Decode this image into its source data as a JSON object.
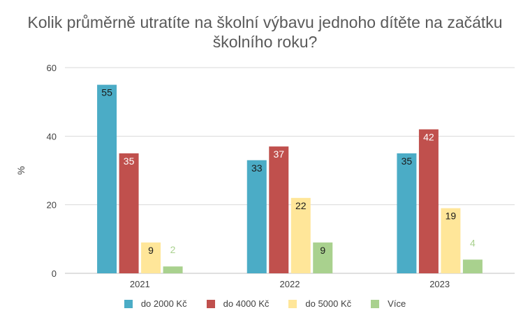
{
  "chart_data": {
    "type": "bar",
    "title_lines": [
      "Kolik průměrně utratíte na školní výbavu jednoho dítěte na začátku",
      "školního roku?"
    ],
    "xlabel": "",
    "ylabel": "%",
    "categories": [
      "2021",
      "2022",
      "2023"
    ],
    "ylim": [
      0,
      60
    ],
    "yticks": [
      0,
      20,
      40,
      60
    ],
    "grid": true,
    "legend_position": "bottom",
    "series": [
      {
        "name": "do 2000 Kč",
        "color": "#4bacc6",
        "values": [
          55,
          33,
          35
        ],
        "label_color": "#1a1a1a"
      },
      {
        "name": "do 4000 Kč",
        "color": "#c0504d",
        "values": [
          35,
          37,
          42
        ],
        "label_color": "#ffffff"
      },
      {
        "name": "do 5000 Kč",
        "color": "#ffe699",
        "values": [
          9,
          22,
          19
        ],
        "label_color": "#1a1a1a"
      },
      {
        "name": "Více",
        "color": "#a9d18e",
        "values": [
          2,
          9,
          4
        ],
        "label_color": "#1a1a1a",
        "small_label_color": "#a9d18e"
      }
    ]
  }
}
